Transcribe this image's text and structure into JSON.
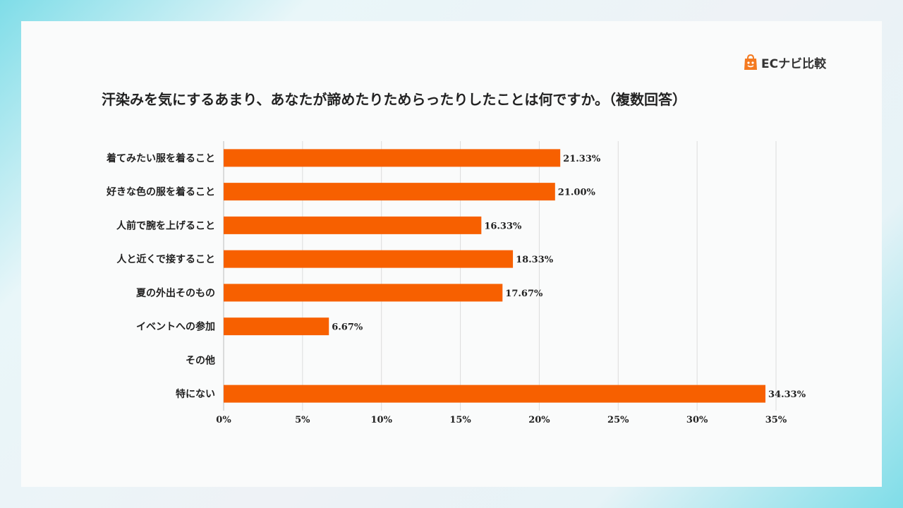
{
  "brand": {
    "logo_text": "ECナビ比較",
    "accent_color": "#f47a20"
  },
  "chart_data": {
    "type": "bar",
    "orientation": "horizontal",
    "title": "汗染みを気にするあまり、あなたが諦めたりためらったりしたことは何ですか。（複数回答）",
    "categories": [
      "着てみたい服を着ること",
      "好きな色の服を着ること",
      "人前で腕を上げること",
      "人と近くで接すること",
      "夏の外出そのもの",
      "イベントへの参加",
      "その他",
      "特にない"
    ],
    "values": [
      21.33,
      21.0,
      16.33,
      18.33,
      17.67,
      6.67,
      0,
      34.33
    ],
    "value_labels": [
      "21.33%",
      "21.00%",
      "16.33%",
      "18.33%",
      "17.67%",
      "6.67%",
      "",
      "34.33%"
    ],
    "xlim": [
      0,
      35
    ],
    "x_ticks": [
      "0%",
      "5%",
      "10%",
      "15%",
      "20%",
      "25%",
      "30%",
      "35%"
    ],
    "bar_color": "#f76000",
    "grid": true,
    "legend": "none"
  }
}
